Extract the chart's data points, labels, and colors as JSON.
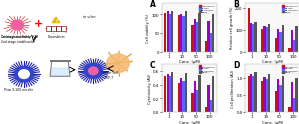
{
  "chart_A": {
    "label": "A",
    "xlabel": "Conc. (μM)",
    "ylabel": "Cell viability (%)",
    "x_labels": [
      "1",
      "10",
      "50",
      "100"
    ],
    "series": {
      "Doxorubicin": [
        105,
        98,
        72,
        28
      ],
      "CB-H20": [
        108,
        100,
        88,
        82
      ],
      "CB-H20/Dox": [
        100,
        95,
        80,
        50
      ],
      "Blank": [
        110,
        108,
        105,
        100
      ]
    },
    "colors": [
      "#cc1111",
      "#9900cc",
      "#5566ff",
      "#555555"
    ],
    "ylim": [
      0,
      130
    ],
    "yticks": [
      0,
      50,
      100
    ]
  },
  "chart_B": {
    "label": "B",
    "xlabel": "Conc. (μM)",
    "ylabel": "Relative cell growth (%)",
    "x_labels": [
      "1",
      "10",
      "50",
      "100"
    ],
    "series": {
      "Doxorubicin": [
        200,
        105,
        60,
        18
      ],
      "CB-H20": [
        130,
        118,
        105,
        98
      ],
      "CB-H20/Dox": [
        125,
        110,
        88,
        55
      ],
      "Blank": [
        135,
        128,
        122,
        115
      ]
    },
    "colors": [
      "#cc1111",
      "#9900cc",
      "#5566ff",
      "#555555"
    ],
    "ylim": [
      0,
      220
    ],
    "yticks": [
      0,
      100,
      200
    ]
  },
  "chart_C": {
    "label": "C",
    "xlabel": "Conc. (μM)",
    "ylabel": "Cytotoxicity (AU)",
    "x_labels": [
      "1",
      "10",
      "50",
      "100"
    ],
    "series": {
      "Doxorubicin": [
        0.52,
        0.42,
        0.28,
        0.08
      ],
      "CB-H20": [
        0.55,
        0.5,
        0.45,
        0.4
      ],
      "CB-H20/Dox": [
        0.52,
        0.45,
        0.32,
        0.18
      ],
      "Blank": [
        0.58,
        0.56,
        0.54,
        0.52
      ]
    },
    "colors": [
      "#cc1111",
      "#9900cc",
      "#5566ff",
      "#555555"
    ],
    "ylim": [
      0,
      0.7
    ],
    "yticks": [
      0.0,
      0.2,
      0.4,
      0.6
    ]
  },
  "chart_D": {
    "label": "D",
    "xlabel": "Conc. (μM)",
    "ylabel": "Cell proliferation (AU)",
    "x_labels": [
      "1",
      "10",
      "50",
      "100"
    ],
    "series": {
      "Doxorubicin": [
        1.05,
        0.9,
        0.6,
        0.15
      ],
      "CB-H20": [
        1.1,
        1.02,
        0.95,
        0.88
      ],
      "CB-H20/Dox": [
        1.05,
        0.95,
        0.78,
        0.42
      ],
      "Blank": [
        1.15,
        1.1,
        1.05,
        1.0
      ]
    },
    "colors": [
      "#cc1111",
      "#9900cc",
      "#5566ff",
      "#555555"
    ],
    "ylim": [
      0,
      1.4
    ],
    "yticks": [
      0.0,
      0.5,
      1.0
    ]
  },
  "bar_width": 0.17,
  "background_color": "#ffffff",
  "series_labels": [
    "Doxorubicin",
    "CB-H20",
    "CB-H20/Dox",
    "Blank"
  ]
}
